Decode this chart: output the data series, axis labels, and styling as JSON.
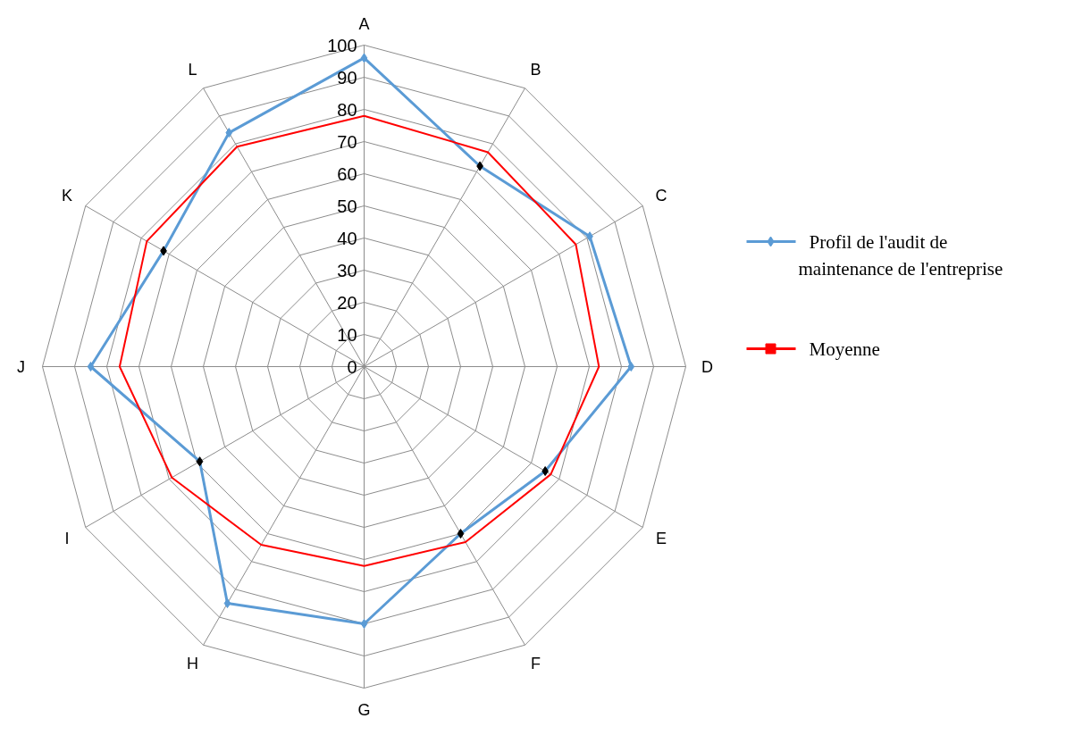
{
  "chart_data": {
    "type": "radar",
    "categories": [
      "A",
      "B",
      "C",
      "D",
      "E",
      "F",
      "G",
      "H",
      "I",
      "J",
      "K",
      "L"
    ],
    "ylim": [
      0,
      100
    ],
    "yticks": [
      0,
      10,
      20,
      30,
      40,
      50,
      60,
      70,
      80,
      90,
      100
    ],
    "grid": true,
    "legend": "right",
    "marker": "diamond",
    "series": [
      {
        "name": "Profil de l'audit de maintenance de l'entreprise",
        "color": "#5b9bd5",
        "colors": [
          "#5b9bd5",
          "#000000",
          "#5b9bd5",
          "#5b9bd5",
          "#000000",
          "#000000",
          "#5b9bd5",
          "#5b9bd5",
          "#000000",
          "#5b9bd5",
          "#000000",
          "#5b9bd5"
        ],
        "values": [
          96,
          72,
          81,
          83,
          65,
          60,
          80,
          85,
          59,
          85,
          72,
          84
        ]
      },
      {
        "name": "Moyenne",
        "color": "#ff0000",
        "marker": "none",
        "values": [
          78,
          77,
          76,
          73,
          67,
          63,
          62,
          64,
          69,
          76,
          78,
          79
        ]
      }
    ]
  }
}
